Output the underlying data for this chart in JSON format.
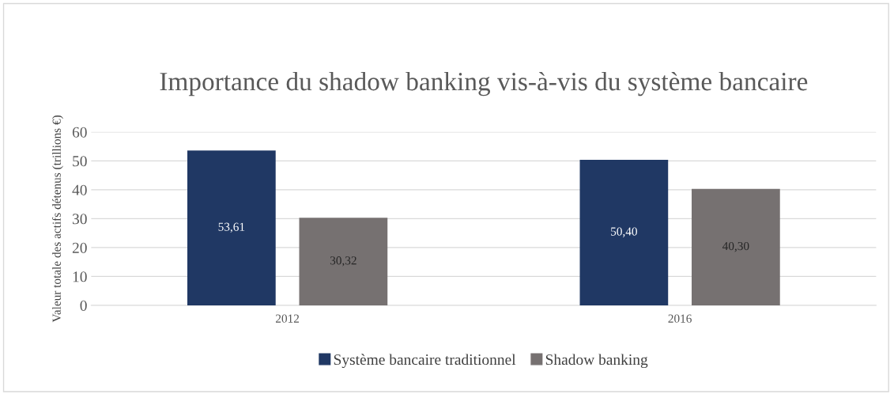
{
  "chart_data": {
    "type": "bar",
    "title": "Importance du shadow banking vis-à-vis du système bancaire",
    "ylabel": "Valeur totale des actifs détenus (trillions €)",
    "categories": [
      "2012",
      "2016"
    ],
    "series": [
      {
        "name": "Système bancaire traditionnel",
        "color": "#203864",
        "values": [
          53.61,
          50.4
        ],
        "value_labels": [
          "53,61",
          "50,40"
        ]
      },
      {
        "name": "Shadow banking",
        "color": "#767171",
        "values": [
          30.32,
          40.3
        ],
        "value_labels": [
          "30,32",
          "40,30"
        ]
      }
    ],
    "ylim": [
      0,
      60
    ],
    "yticks": [
      0,
      10,
      20,
      30,
      40,
      50,
      60
    ],
    "grid": "y",
    "legend": "bottom"
  }
}
